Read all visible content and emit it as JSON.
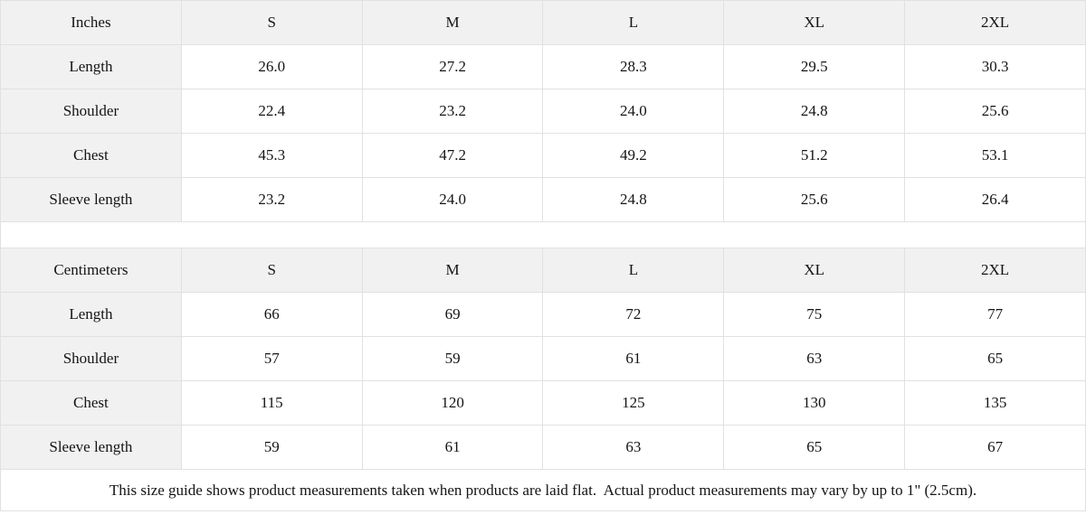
{
  "colors": {
    "header_background": "#f1f1f1",
    "border": "#e1e1e1",
    "text": "#141414",
    "cell_background": "#ffffff"
  },
  "tables": [
    {
      "unit_label": "Inches",
      "columns": [
        "S",
        "M",
        "L",
        "XL",
        "2XL"
      ],
      "rows": [
        {
          "label": "Length",
          "values": [
            "26.0",
            "27.2",
            "28.3",
            "29.5",
            "30.3"
          ]
        },
        {
          "label": "Shoulder",
          "values": [
            "22.4",
            "23.2",
            "24.0",
            "24.8",
            "25.6"
          ]
        },
        {
          "label": "Chest",
          "values": [
            "45.3",
            "47.2",
            "49.2",
            "51.2",
            "53.1"
          ]
        },
        {
          "label": "Sleeve length",
          "values": [
            "23.2",
            "24.0",
            "24.8",
            "25.6",
            "26.4"
          ]
        }
      ]
    },
    {
      "unit_label": "Centimeters",
      "columns": [
        "S",
        "M",
        "L",
        "XL",
        "2XL"
      ],
      "rows": [
        {
          "label": "Length",
          "values": [
            "66",
            "69",
            "72",
            "75",
            "77"
          ]
        },
        {
          "label": "Shoulder",
          "values": [
            "57",
            "59",
            "61",
            "63",
            "65"
          ]
        },
        {
          "label": "Chest",
          "values": [
            "115",
            "120",
            "125",
            "130",
            "135"
          ]
        },
        {
          "label": "Sleeve length",
          "values": [
            "59",
            "61",
            "63",
            "65",
            "67"
          ]
        }
      ]
    }
  ],
  "footer": {
    "note": "This size guide shows product measurements taken when products are laid flat.  Actual product measurements may vary by up to 1\" (2.5cm)."
  }
}
